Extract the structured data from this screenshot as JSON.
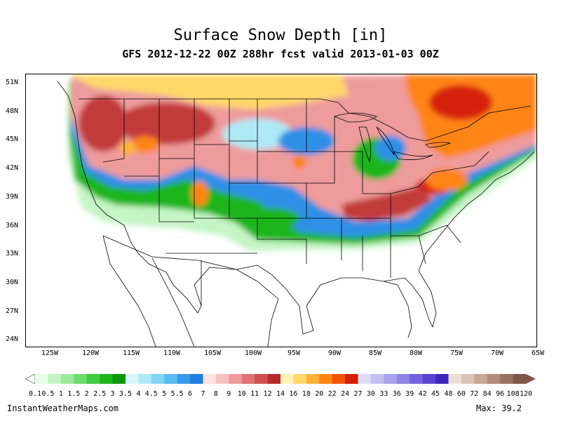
{
  "title": "Surface Snow Depth [in]",
  "subtitle": "GFS 2012-12-22 00Z 288hr fcst valid 2013-01-03 00Z",
  "lat_labels": [
    "51N",
    "48N",
    "45N",
    "42N",
    "39N",
    "36N",
    "33N",
    "30N",
    "27N",
    "24N"
  ],
  "lon_labels": [
    "125W",
    "120W",
    "115W",
    "110W",
    "105W",
    "100W",
    "95W",
    "90W",
    "85W",
    "80W",
    "75W",
    "70W",
    "65W"
  ],
  "colorbar": {
    "labels": [
      "0.1",
      "0.5",
      "1",
      "1.5",
      "2",
      "2.5",
      "3",
      "3.5",
      "4",
      "4.5",
      "5",
      "5.5",
      "6",
      "7",
      "8",
      "9",
      "10",
      "11",
      "12",
      "14",
      "16",
      "18",
      "20",
      "22",
      "24",
      "27",
      "30",
      "33",
      "36",
      "39",
      "42",
      "45",
      "48",
      "60",
      "72",
      "84",
      "96",
      "108",
      "120"
    ],
    "colors": [
      "#e6fde6",
      "#c5f5c5",
      "#9ceb9c",
      "#6ddc6d",
      "#3fcc3f",
      "#1eb51e",
      "#0c960c",
      "#d6f6fb",
      "#aee9f6",
      "#83d4f2",
      "#5bbaf0",
      "#3a9bea",
      "#1f7ee0",
      "#fde2e2",
      "#f7c1c1",
      "#ee9b9b",
      "#e07373",
      "#cf4e4e",
      "#b52b2b",
      "#fff3b5",
      "#ffd86b",
      "#ffb13b",
      "#ff8414",
      "#f2530a",
      "#d62008",
      "#dcdcf6",
      "#c3c1f2",
      "#a9a3ee",
      "#8e83e8",
      "#7362de",
      "#5a43d2",
      "#3e26b8",
      "#ece0d6",
      "#dcc4b4",
      "#c9a794",
      "#b38b78",
      "#9a7060",
      "#7e5648"
    ]
  },
  "credit": "InstantWeatherMaps.com",
  "max_label": "Max:  39.2",
  "colors": {
    "snow_green": "#1eb51e",
    "snow_blue": "#2f8fe6",
    "snow_pink": "#ee9b9b",
    "snow_red": "#c23b3b",
    "snow_orange": "#ff8414",
    "snow_yellow": "#ffd86b"
  }
}
